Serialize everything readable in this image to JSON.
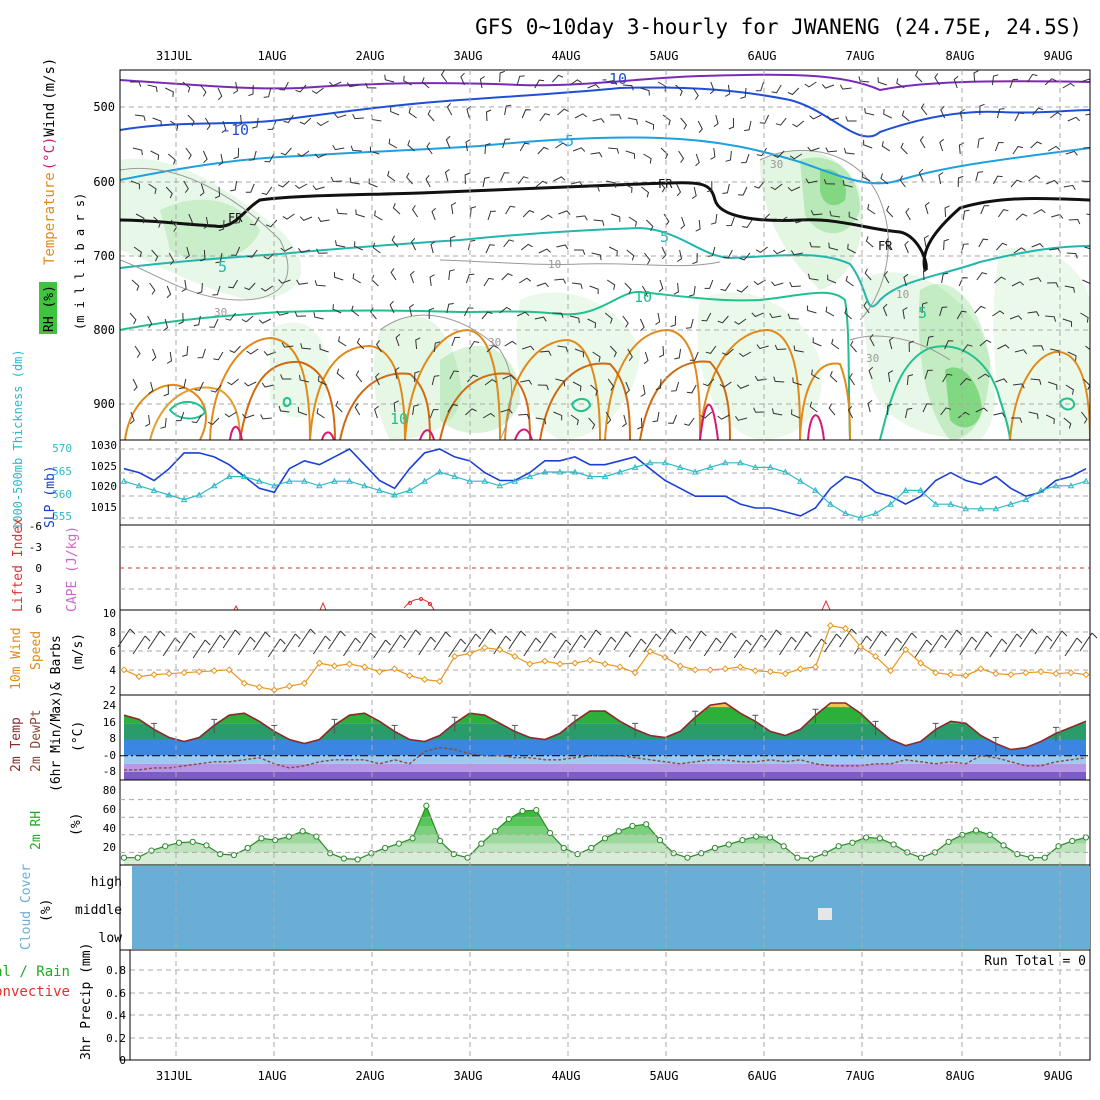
{
  "title": "GFS 0~10day 3-hourly for JWANENG (24.75E, 24.5S)",
  "date_labels": [
    "31JUL",
    "1AUG",
    "2AUG",
    "3AUG",
    "4AUG",
    "5AUG",
    "6AUG",
    "7AUG",
    "8AUG",
    "9AUG"
  ],
  "colors": {
    "grid": "#aaaaaa",
    "rh_green": "#3ec43e",
    "wind_barb": "#333333",
    "slp_line": "#1a3fd6",
    "thickness_line": "#2fb8c8",
    "lifted_index": "#e03030",
    "cape": "#cc66cc",
    "wind_speed": "#e8961e",
    "temp_line": "#8b2a2a",
    "dewpt_line": "#8b4a3a",
    "rh2m_line": "#2a8a2a",
    "cloud_fill": "#6aaed6",
    "cloud_clear": "#e6e6e6",
    "total_rain": "#22aa22",
    "convective": "#e03030"
  },
  "panels": {
    "upper": {
      "ylabel_parts": [
        "Temperature",
        "(°C)",
        "Wind",
        "(m/s)"
      ],
      "rh_label": "RH (%)",
      "pressure_label": "(m i l l i b a r s)",
      "pressure_ticks": [
        "500",
        "600",
        "700",
        "800",
        "900"
      ],
      "contour_labels": {
        "minus10a": "-10",
        "minus10b": "-10",
        "minus5": "-5",
        "fr1": "FR",
        "fr2": "FR",
        "fr3": "FR",
        "plus5a": "5",
        "plus5b": "5",
        "plus5c": "5",
        "plus10a": "10",
        "plus10b": "10",
        "rh30a": "30",
        "rh30b": "30",
        "rh30c": "30",
        "rh30d": "30",
        "rh10a": "10",
        "rh10b": "10"
      }
    },
    "slp": {
      "ylabel_left": "1000-500mb Thickness (dm)",
      "ylabel_right": "SLP (mb)",
      "thickness_ticks": [
        "555",
        "560",
        "565",
        "570"
      ],
      "slp_ticks": [
        "1015",
        "1020",
        "1025",
        "1030"
      ]
    },
    "cape": {
      "ylabel_li": "Lifted Index",
      "ylabel_cape": "CAPE (J/kg)",
      "ticks": [
        "-6",
        "-3",
        "0",
        "3",
        "6"
      ]
    },
    "wind10m": {
      "ylabel": [
        "10m Wind",
        "Speed",
        "& Barbs"
      ],
      "unit": "(m/s)",
      "ticks": [
        "2",
        "4",
        "6",
        "8",
        "10"
      ]
    },
    "temp2m": {
      "ylabel": [
        "2m Temp",
        "2m DewPt",
        "(6hr Min/Max)"
      ],
      "unit": "(°C)",
      "ticks": [
        "-8",
        "-0",
        "8",
        "16",
        "24"
      ]
    },
    "rh2m": {
      "ylabel": "2m RH",
      "unit": "(%)",
      "ticks": [
        "20",
        "40",
        "60",
        "80"
      ]
    },
    "cloud": {
      "ylabel": "Cloud Cover",
      "unit": "(%)",
      "levels": [
        "high",
        "middle",
        "low"
      ]
    },
    "precip": {
      "ylabel_total": "Total / Rain",
      "ylabel_conv": "Convective",
      "ylabel_main": "3hr Precip (mm)",
      "run_total": "Run Total = 0",
      "ticks": [
        "0",
        "0.2",
        "0.4",
        "0.6",
        "0.8"
      ]
    }
  },
  "chart_data": [
    {
      "type": "line",
      "panel": "slp",
      "series": [
        {
          "values": [
            1025,
            1024,
            1022,
            1025,
            1029,
            1029,
            1028,
            1026,
            1023,
            1020,
            1019,
            1025,
            1027,
            1026,
            1028,
            1030,
            1026,
            1022,
            1020,
            1025,
            1029,
            1030,
            1028,
            1027,
            1024,
            1022,
            1022,
            1024,
            1027,
            1027,
            1028,
            1026,
            1026,
            1027,
            1028,
            1025,
            1022,
            1020,
            1018,
            1018,
            1018,
            1016,
            1015,
            1015,
            1014,
            1013,
            1015,
            1020,
            1023,
            1022,
            1019,
            1018,
            1016,
            1018,
            1022,
            1024,
            1022,
            1021,
            1023,
            1020,
            1018,
            1019,
            1022,
            1023,
            1025
          ]
        },
        {
          "values": [
            563,
            562,
            561,
            560,
            559,
            560,
            562,
            564,
            564,
            563,
            562,
            563,
            563,
            562,
            563,
            563,
            562,
            561,
            560,
            561,
            563,
            565,
            564,
            563,
            563,
            562,
            563,
            564,
            565,
            565,
            565,
            564,
            564,
            565,
            566,
            567,
            567,
            566,
            565,
            566,
            567,
            567,
            566,
            566,
            565,
            563,
            561,
            558,
            556,
            555,
            556,
            558,
            561,
            561,
            558,
            558,
            557,
            557,
            557,
            558,
            559,
            561,
            562,
            562,
            563
          ]
        }
      ]
    },
    {
      "type": "line",
      "panel": "wind10m",
      "series": [
        {
          "values": [
            4.2,
            3.5,
            3.7,
            3.8,
            3.9,
            4.0,
            4.1,
            4.2,
            2.8,
            2.4,
            2.1,
            2.5,
            2.8,
            4.9,
            4.6,
            4.8,
            4.5,
            4.0,
            4.3,
            3.6,
            3.2,
            3.0,
            5.6,
            5.9,
            6.5,
            6.3,
            5.6,
            4.8,
            5.1,
            4.8,
            4.9,
            5.2,
            4.8,
            4.5,
            3.9,
            6.1,
            5.5,
            4.6,
            4.2,
            4.2,
            4.3,
            4.5,
            4.1,
            4.0,
            3.8,
            4.3,
            4.5,
            8.8,
            8.5,
            6.6,
            5.6,
            4.1,
            6.3,
            4.9,
            3.9,
            3.7,
            3.6,
            4.3,
            3.8,
            3.7,
            3.9,
            4.0,
            3.8,
            3.9,
            3.7
          ]
        }
      ]
    },
    {
      "type": "area",
      "panel": "temp2m",
      "series": [
        {
          "values": [
            20,
            18,
            13,
            9,
            7,
            9,
            15,
            20,
            21,
            17,
            12,
            8,
            6,
            8,
            15,
            20,
            21,
            17,
            12,
            8,
            7,
            10,
            16,
            21,
            20,
            16,
            12,
            9,
            8,
            11,
            17,
            22,
            22,
            17,
            13,
            10,
            9,
            12,
            19,
            25,
            26,
            21,
            17,
            12,
            10,
            13,
            20,
            26,
            26,
            21,
            14,
            8,
            5,
            7,
            13,
            17,
            16,
            10,
            6,
            3,
            4,
            7,
            11,
            14,
            17
          ]
        },
        {
          "values": [
            -7,
            -7,
            -6,
            -6,
            -5,
            -4,
            -3,
            -3,
            -2,
            -1,
            -4,
            -6,
            -5,
            -3,
            -2,
            -2,
            -2,
            -4,
            -2,
            -4,
            2,
            4,
            3,
            1,
            0,
            0,
            -1,
            -1,
            -2,
            -2,
            -1,
            0,
            0,
            0,
            -1,
            -2,
            -3,
            -4,
            -3,
            -2,
            -2,
            -3,
            -3,
            -2,
            -3,
            -2,
            -4,
            -5,
            -5,
            -5,
            -4,
            -4,
            -2,
            -3,
            -4,
            -3,
            -4,
            0,
            -1,
            -3,
            -5,
            -5,
            -3,
            -2,
            -1
          ]
        }
      ]
    },
    {
      "type": "area",
      "panel": "rh2m",
      "series": [
        {
          "values": [
            14,
            14,
            22,
            27,
            31,
            32,
            28,
            18,
            17,
            25,
            36,
            34,
            38,
            44,
            38,
            19,
            13,
            12,
            19,
            25,
            30,
            36,
            73,
            33,
            18,
            14,
            30,
            44,
            58,
            67,
            68,
            42,
            25,
            18,
            25,
            36,
            44,
            50,
            52,
            34,
            19,
            14,
            19,
            25,
            29,
            34,
            38,
            37,
            27,
            14,
            13,
            19,
            27,
            31,
            37,
            36,
            29,
            20,
            14,
            20,
            32,
            40,
            45,
            40,
            28,
            18,
            14,
            14,
            27,
            33,
            37
          ]
        }
      ]
    },
    {
      "type": "area",
      "panel": "cloud",
      "series": [
        {
          "values": [
            0
          ]
        }
      ]
    },
    {
      "type": "bar",
      "panel": "precip",
      "series": [
        {
          "values": [
            0
          ]
        }
      ],
      "ylim": [
        0,
        0.8
      ]
    }
  ]
}
